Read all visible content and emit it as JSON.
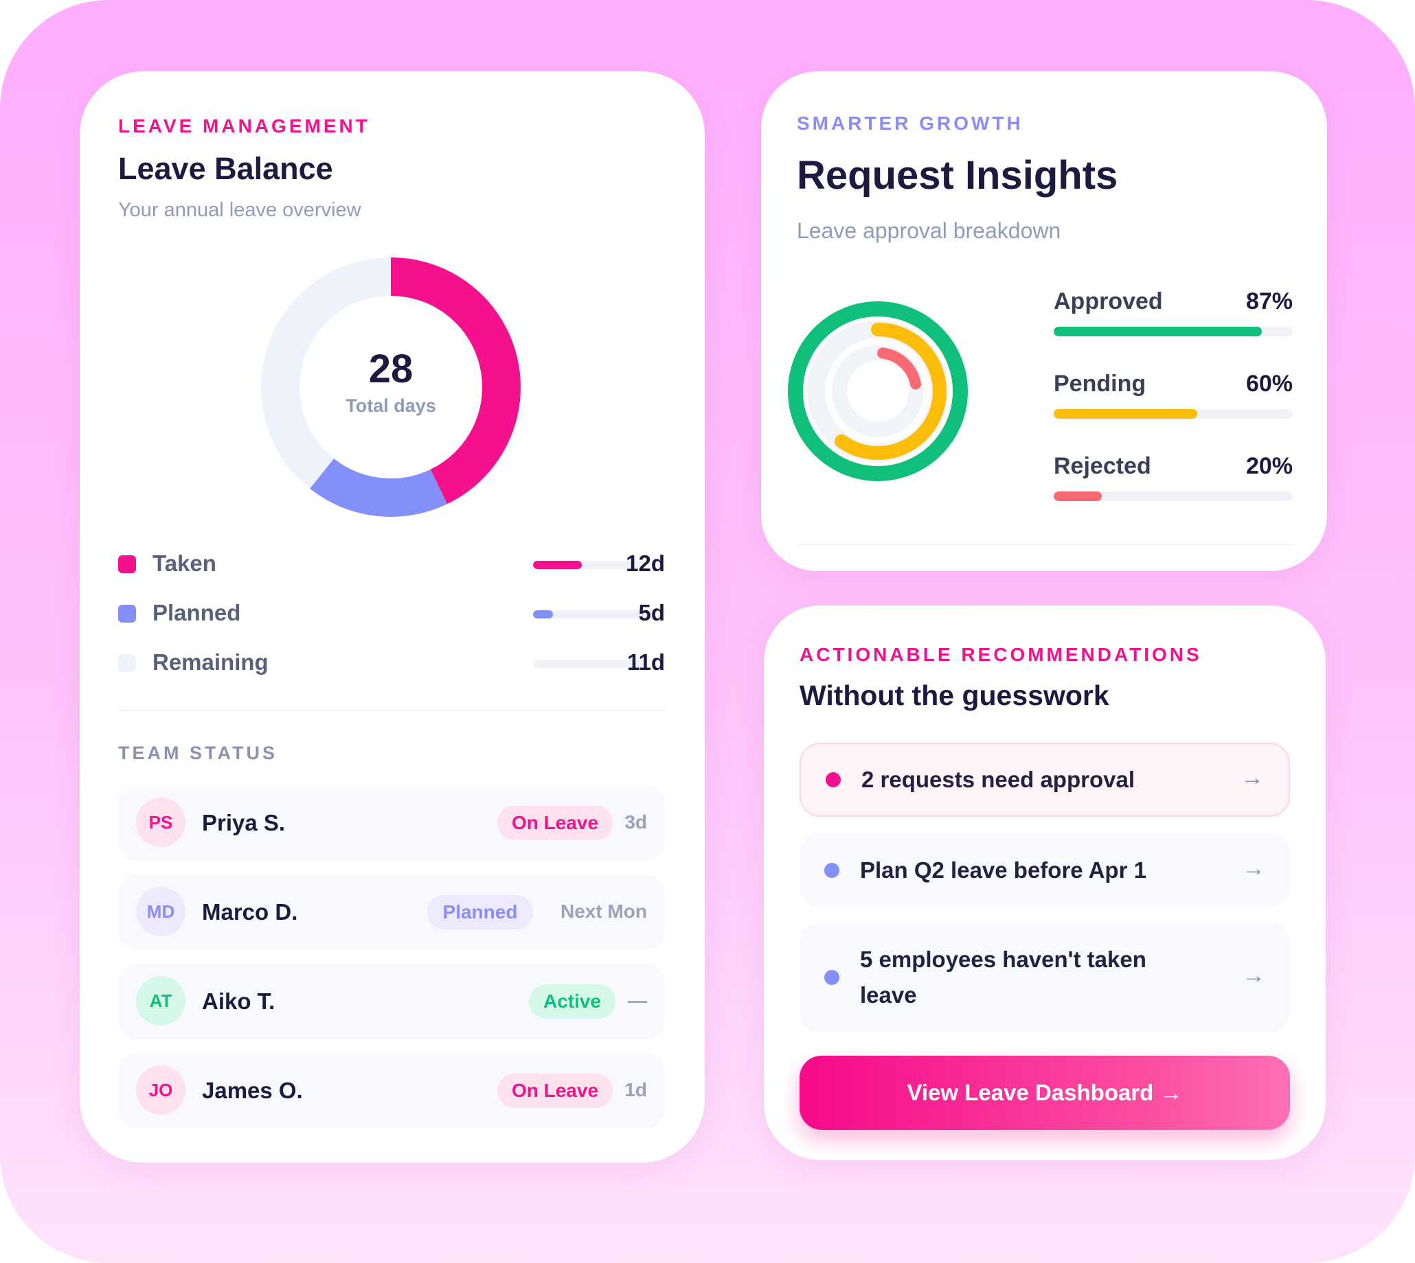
{
  "leave_card": {
    "eyebrow": "LEAVE MANAGEMENT",
    "title": "Leave Balance",
    "subtitle": "Your annual leave overview",
    "total_value": "28",
    "total_label": "Total days",
    "legend": [
      {
        "label": "Taken",
        "value": "12d",
        "days": 12,
        "color": "#f5118e"
      },
      {
        "label": "Planned",
        "value": "5d",
        "days": 5,
        "color": "#8490fa"
      },
      {
        "label": "Remaining",
        "value": "11d",
        "days": 11,
        "color": "#eef2fb"
      }
    ],
    "team_heading": "TEAM STATUS",
    "team": [
      {
        "initials": "PS",
        "name": "Priya S.",
        "status": "On Leave",
        "when": "3d",
        "status_type": "leave"
      },
      {
        "initials": "MD",
        "name": "Marco D.",
        "status": "Planned",
        "when": "Next Mon",
        "status_type": "planned"
      },
      {
        "initials": "AT",
        "name": "Aiko T.",
        "status": "Active",
        "when": "—",
        "status_type": "active"
      },
      {
        "initials": "JO",
        "name": "James O.",
        "status": "On Leave",
        "when": "1d",
        "status_type": "leave"
      }
    ]
  },
  "insights_card": {
    "eyebrow": "SMARTER GROWTH",
    "title": "Request Insights",
    "subtitle": "Leave approval breakdown",
    "metrics": [
      {
        "label": "Approved",
        "value": "87%",
        "percent": 87,
        "color": "#10c07a"
      },
      {
        "label": "Pending",
        "value": "60%",
        "percent": 60,
        "color": "#fbbd08"
      },
      {
        "label": "Rejected",
        "value": "20%",
        "percent": 20,
        "color": "#fb6a72"
      }
    ]
  },
  "recommendations_card": {
    "eyebrow": "ACTIONABLE RECOMMENDATIONS",
    "title": "Without the guesswork",
    "items": [
      {
        "text": "2 requests need approval",
        "dot_color": "#f5118e",
        "highlight": true
      },
      {
        "text": "Plan Q2 leave before Apr 1",
        "dot_color": "#8490fa",
        "highlight": false
      },
      {
        "text": "5 employees haven't taken leave",
        "dot_color": "#8490fa",
        "highlight": false
      }
    ],
    "cta_label": "View Leave Dashboard →"
  },
  "icons": {
    "arrow": "arrow-right-icon"
  },
  "colors": {
    "accent_pink": "#f5118e",
    "accent_violet": "#8b8cf6",
    "badge_leave_bg": "#fde2ee",
    "badge_planned_bg": "#eeeafd",
    "badge_active_bg": "#d6f8e8"
  }
}
